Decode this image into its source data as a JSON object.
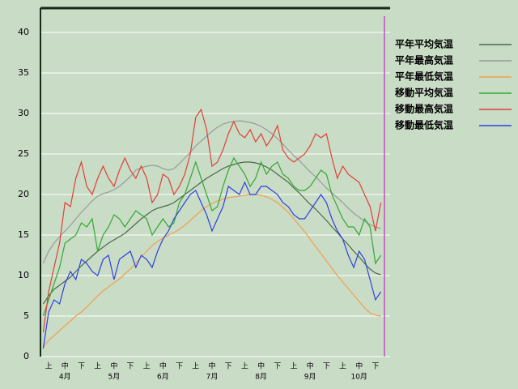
{
  "chart_data": {
    "type": "line",
    "categories": [
      null,
      "上",
      null,
      null,
      "中",
      null,
      null,
      "下",
      null,
      null,
      "上",
      null,
      null,
      "中",
      null,
      null,
      "下",
      null,
      null,
      "上",
      null,
      null,
      "中",
      null,
      null,
      "下",
      null,
      null,
      "上",
      null,
      null,
      "中",
      null,
      null,
      "下",
      null,
      null,
      "上",
      null,
      null,
      "中",
      null,
      null,
      "下",
      null,
      null,
      "上",
      null,
      null,
      "中",
      null,
      null,
      "下",
      null,
      null,
      "上",
      null,
      null,
      "中",
      null,
      null,
      "下",
      null
    ],
    "months": [
      "4月",
      "5月",
      "6月",
      "7月",
      "8月",
      "9月",
      "10月"
    ],
    "ylim": [
      0,
      43
    ],
    "yticks": [
      0,
      5,
      10,
      15,
      20,
      25,
      30,
      35,
      40
    ],
    "grid": true,
    "legend": "right",
    "series": [
      {
        "name": "平年平均気温",
        "color": "#4a6a48",
        "values": [
          6.5,
          7.5,
          8.3,
          8.8,
          9.3,
          9.8,
          10.5,
          11.2,
          11.8,
          12.4,
          13,
          13.5,
          14,
          14.4,
          14.8,
          15.2,
          15.8,
          16.4,
          17,
          17.5,
          18,
          18.3,
          18.5,
          18.7,
          19,
          19.5,
          20,
          20.5,
          21,
          21.5,
          22,
          22.4,
          22.8,
          23.2,
          23.5,
          23.7,
          23.9,
          24,
          24,
          23.9,
          23.7,
          23.4,
          23,
          22.5,
          22,
          21.5,
          20.8,
          20.2,
          19.5,
          18.8,
          18.2,
          17.5,
          16.8,
          16,
          15.3,
          14.5,
          13.8,
          13,
          12.3,
          11.5,
          10.8,
          10.3,
          10.1
        ]
      },
      {
        "name": "平年最高気温",
        "color": "#9a9a9a",
        "values": [
          11.5,
          13,
          14,
          14.8,
          15.5,
          16.2,
          17,
          17.8,
          18.5,
          19.2,
          19.8,
          20.1,
          20.3,
          20.6,
          21,
          21.6,
          22.2,
          23,
          23.3,
          23.5,
          23.6,
          23.5,
          23.2,
          23,
          23.2,
          23.8,
          24.5,
          25.2,
          26,
          26.6,
          27.2,
          27.8,
          28.3,
          28.7,
          28.9,
          29,
          29.1,
          29,
          28.9,
          28.7,
          28.4,
          28,
          27.5,
          26.9,
          26.2,
          25.5,
          24.8,
          24.2,
          23.5,
          22.8,
          22.2,
          21.5,
          20.8,
          20.2,
          19.6,
          19,
          18.3,
          17.7,
          17.2,
          16.7,
          16.3,
          16,
          15.8
        ]
      },
      {
        "name": "平年最低気温",
        "color": "#f0a050",
        "values": [
          1.2,
          2,
          2.6,
          3.2,
          3.8,
          4.4,
          5,
          5.5,
          6.1,
          6.8,
          7.5,
          8.1,
          8.6,
          9.1,
          9.6,
          10.2,
          10.8,
          11.5,
          12.3,
          13,
          13.7,
          14.2,
          14.6,
          15,
          15.3,
          15.7,
          16.2,
          16.8,
          17.4,
          18,
          18.5,
          18.9,
          19.2,
          19.4,
          19.6,
          19.7,
          19.8,
          19.9,
          20,
          20,
          19.9,
          19.7,
          19.4,
          19,
          18.4,
          17.8,
          17,
          16.2,
          15.4,
          14.5,
          13.6,
          12.7,
          11.8,
          10.9,
          10,
          9.2,
          8.4,
          7.6,
          6.8,
          6,
          5.4,
          5.1,
          5
        ]
      },
      {
        "name": "移動平均気温",
        "color": "#33a833",
        "values": [
          5,
          7,
          9,
          11,
          14,
          14.5,
          15,
          16.5,
          16,
          17,
          13,
          15,
          16,
          17.5,
          17,
          16,
          17,
          18,
          17.5,
          17,
          15,
          16,
          17,
          16,
          16.5,
          19,
          20,
          22,
          24,
          22,
          20,
          18,
          18.5,
          21,
          23,
          24.5,
          23.5,
          22.5,
          21,
          22,
          24,
          22.5,
          23.5,
          24,
          22.5,
          22,
          21,
          20.5,
          20.5,
          21,
          22,
          23,
          22.5,
          20,
          18.5,
          17,
          16,
          16,
          15,
          17,
          16,
          11.5,
          12.5
        ]
      },
      {
        "name": "移動最高気温",
        "color": "#e04038",
        "values": [
          3,
          8,
          11,
          14,
          19,
          18.5,
          22,
          24,
          21,
          20,
          22,
          23.5,
          22,
          21,
          23,
          24.5,
          23,
          22,
          23.5,
          22,
          19,
          20,
          22.5,
          22,
          20,
          21,
          22.5,
          25,
          29.5,
          30.5,
          28,
          23.5,
          24,
          25.5,
          27.5,
          29,
          27.5,
          27,
          28,
          26.5,
          27.5,
          26,
          27,
          28.5,
          25.5,
          24.5,
          24,
          24.5,
          25,
          26,
          27.5,
          27,
          27.5,
          24.5,
          22,
          23.5,
          22.5,
          22,
          21.5,
          20,
          18.5,
          15.5,
          19
        ]
      },
      {
        "name": "移動最低気温",
        "color": "#3040e0",
        "values": [
          1,
          5.5,
          7,
          6.5,
          9,
          10.5,
          9.5,
          12,
          11.5,
          10.5,
          10,
          12,
          12.5,
          9.5,
          12,
          12.5,
          13,
          11,
          12.5,
          12,
          11,
          13,
          14.5,
          15.5,
          17,
          18,
          19,
          20,
          20.5,
          19,
          17.5,
          15.5,
          17,
          18.5,
          21,
          20.5,
          20,
          21.5,
          20,
          20,
          21,
          21,
          20.5,
          20,
          19,
          18.5,
          17.5,
          17,
          17,
          18,
          19,
          20,
          19,
          17,
          15.5,
          14.5,
          12.5,
          11,
          13,
          12,
          9.5,
          7,
          8
        ]
      }
    ]
  }
}
